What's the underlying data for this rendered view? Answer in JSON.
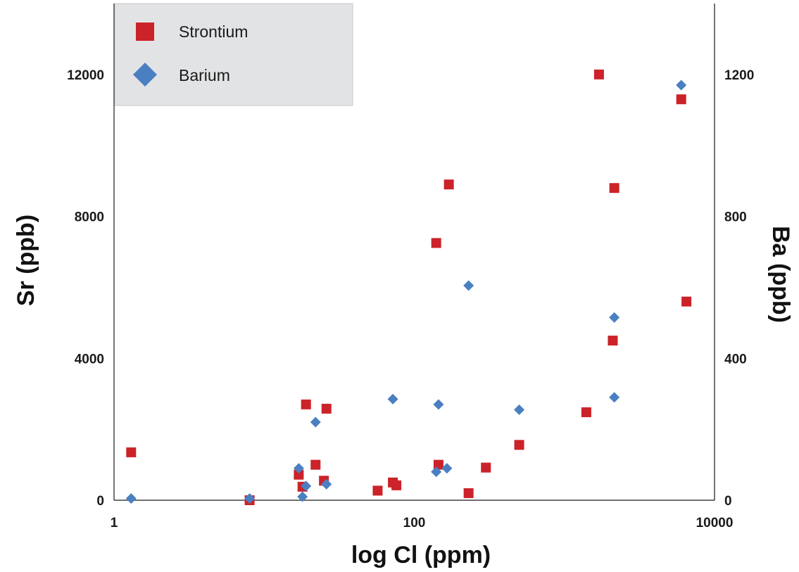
{
  "chart_data": {
    "type": "scatter",
    "title": "",
    "xlabel": "log Cl (ppm)",
    "ylabel": "Sr (ppb)",
    "y2label": "Ba (ppb)",
    "xscale": "log",
    "xlim": [
      1,
      10000
    ],
    "ylim": [
      0,
      14000
    ],
    "y2lim": [
      0,
      1400
    ],
    "xticks": [
      1,
      100,
      10000
    ],
    "xtick_labels": [
      "1",
      "100",
      "10000"
    ],
    "yticks": [
      0,
      4000,
      8000,
      12000
    ],
    "ytick_labels": [
      "0",
      "4000",
      "8000",
      "12000"
    ],
    "y2ticks": [
      0,
      400,
      800,
      1200
    ],
    "y2tick_labels": [
      "0",
      "400",
      "800",
      "1200"
    ],
    "grid": false,
    "legend": {
      "position": "top-left"
    },
    "colors": {
      "strontium": "#cc2229",
      "barium": "#4a7fc1"
    },
    "series": [
      {
        "name": "Strontium",
        "axis": "left",
        "marker": "square",
        "points": [
          [
            1.3,
            1350
          ],
          [
            8,
            0
          ],
          [
            17,
            720
          ],
          [
            18,
            380
          ],
          [
            19,
            2700
          ],
          [
            22,
            1000
          ],
          [
            25,
            550
          ],
          [
            26,
            2580
          ],
          [
            57,
            270
          ],
          [
            72,
            500
          ],
          [
            76,
            420
          ],
          [
            140,
            7250
          ],
          [
            145,
            1000
          ],
          [
            170,
            8900
          ],
          [
            230,
            200
          ],
          [
            300,
            920
          ],
          [
            500,
            1560
          ],
          [
            1400,
            2480
          ],
          [
            1700,
            12000
          ],
          [
            2100,
            4500
          ],
          [
            2150,
            8800
          ],
          [
            6000,
            11300
          ],
          [
            6500,
            5600
          ]
        ]
      },
      {
        "name": "Barium",
        "axis": "right",
        "marker": "diamond",
        "points": [
          [
            1.3,
            5
          ],
          [
            8,
            5
          ],
          [
            17,
            90
          ],
          [
            18,
            10
          ],
          [
            19,
            40
          ],
          [
            22,
            220
          ],
          [
            26,
            45
          ],
          [
            72,
            285
          ],
          [
            140,
            80
          ],
          [
            145,
            270
          ],
          [
            165,
            90
          ],
          [
            230,
            605
          ],
          [
            500,
            255
          ],
          [
            2150,
            515
          ],
          [
            2150,
            290
          ],
          [
            6000,
            1170
          ]
        ]
      }
    ]
  }
}
